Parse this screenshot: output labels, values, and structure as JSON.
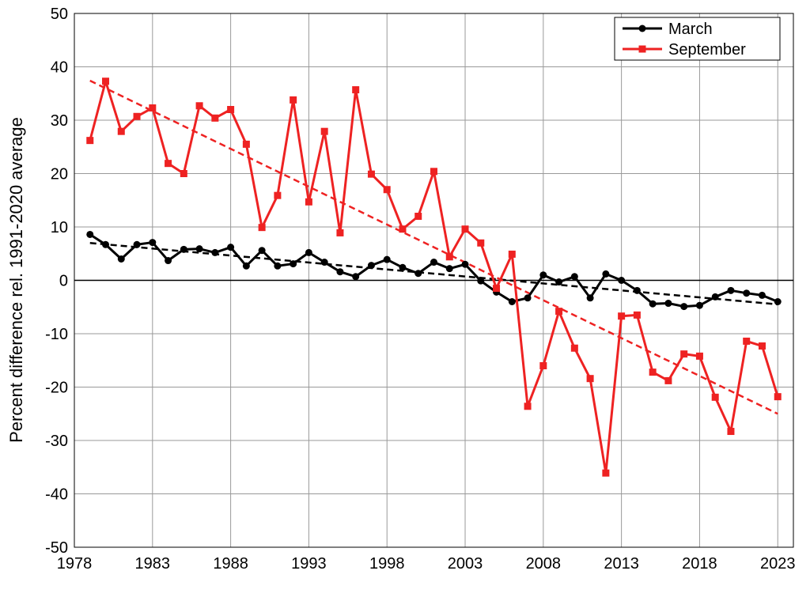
{
  "chart_data": {
    "type": "line",
    "title": "",
    "xlabel": "",
    "ylabel": "Percent difference rel. 1991-2020 average",
    "xlim": [
      1978,
      2024
    ],
    "ylim": [
      -50,
      50
    ],
    "xticks": [
      1978,
      1983,
      1988,
      1993,
      1998,
      2003,
      2008,
      2013,
      2018,
      2023
    ],
    "yticks": [
      -50,
      -40,
      -30,
      -20,
      -10,
      0,
      10,
      20,
      30,
      40,
      50
    ],
    "grid": true,
    "legend_position": "top-right",
    "x": [
      1979,
      1980,
      1981,
      1982,
      1983,
      1984,
      1985,
      1986,
      1987,
      1988,
      1989,
      1990,
      1991,
      1992,
      1993,
      1994,
      1995,
      1996,
      1997,
      1998,
      1999,
      2000,
      2001,
      2002,
      2003,
      2004,
      2005,
      2006,
      2007,
      2008,
      2009,
      2010,
      2011,
      2012,
      2013,
      2014,
      2015,
      2016,
      2017,
      2018,
      2019,
      2020,
      2021,
      2022,
      2023
    ],
    "series": [
      {
        "name": "March",
        "color": "#000000",
        "marker": "circle",
        "values": [
          8.6,
          6.7,
          4.0,
          6.7,
          7.1,
          3.7,
          5.8,
          5.9,
          5.2,
          6.2,
          2.7,
          5.6,
          2.7,
          3.1,
          5.2,
          3.4,
          1.6,
          0.7,
          2.8,
          3.9,
          2.4,
          1.3,
          3.4,
          2.2,
          3.0,
          -0.1,
          -2.2,
          -4.0,
          -3.3,
          1.0,
          -0.3,
          0.7,
          -3.3,
          1.2,
          0.0,
          -1.9,
          -4.4,
          -4.3,
          -4.9,
          -4.7,
          -3.1,
          -1.9,
          -2.4,
          -2.8,
          -4.0
        ],
        "trend": {
          "start": [
            1979,
            7.0
          ],
          "end": [
            2023,
            -4.5
          ]
        }
      },
      {
        "name": "September",
        "color": "#ee2222",
        "marker": "square",
        "values": [
          26.2,
          37.3,
          27.9,
          30.7,
          32.3,
          21.9,
          20.0,
          32.7,
          30.4,
          32.0,
          25.5,
          9.9,
          15.9,
          33.8,
          14.7,
          27.9,
          8.9,
          35.7,
          19.9,
          17.0,
          9.6,
          12.0,
          20.4,
          4.4,
          9.6,
          7.0,
          -1.5,
          4.9,
          -23.6,
          -16.0,
          -5.8,
          -12.7,
          -18.4,
          -36.1,
          -6.7,
          -6.5,
          -17.2,
          -18.8,
          -13.8,
          -14.2,
          -21.9,
          -28.3,
          -11.4,
          -12.3,
          -21.8
        ],
        "trend": {
          "start": [
            1979,
            37.4
          ],
          "end": [
            2023,
            -25.0
          ]
        }
      }
    ]
  }
}
